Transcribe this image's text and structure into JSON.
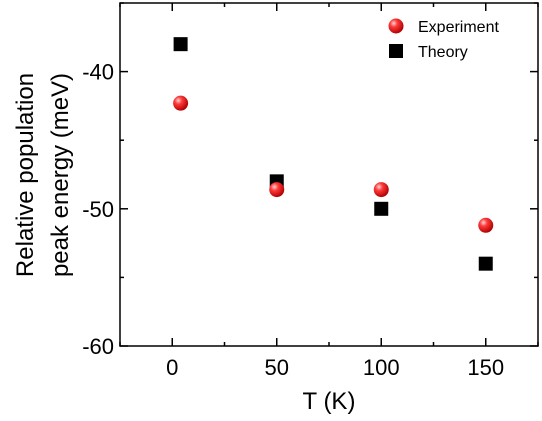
{
  "chart_data": {
    "type": "scatter",
    "xlabel": "T (K)",
    "ylabel_lines": [
      "Relative population",
      "peak energy (meV)"
    ],
    "xlim": [
      -25,
      175
    ],
    "ylim": [
      -60,
      -35
    ],
    "xticks": [
      0,
      50,
      100,
      150
    ],
    "yticks": [
      -60,
      -50,
      -40
    ],
    "xtick_labels": [
      "0",
      "50",
      "100",
      "150"
    ],
    "ytick_labels": [
      "-60",
      "-50",
      "-40"
    ],
    "legend_position": "top-right",
    "grid": false,
    "series": [
      {
        "name": "Experiment",
        "marker": "circle",
        "color": "#e8141c",
        "x": [
          4,
          50,
          100,
          150
        ],
        "y": [
          -42.3,
          -48.6,
          -48.6,
          -51.2
        ]
      },
      {
        "name": "Theory",
        "marker": "square",
        "color": "#000000",
        "x": [
          4,
          50,
          100,
          150
        ],
        "y": [
          -38.0,
          -48.0,
          -50.0,
          -54.0
        ]
      }
    ]
  }
}
